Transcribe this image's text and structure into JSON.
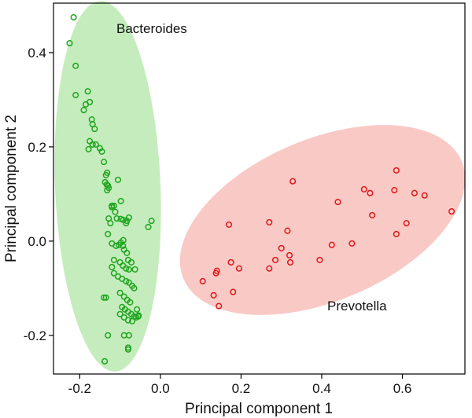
{
  "chart_data": {
    "type": "scatter",
    "title": "",
    "xlabel": "Principal component 1",
    "ylabel": "Principal component 2",
    "xlim": [
      -0.265,
      0.755
    ],
    "ylim": [
      -0.282,
      0.505
    ],
    "xticks": [
      -0.2,
      0.0,
      0.2,
      0.4,
      0.6
    ],
    "xtick_labels": [
      "-0.2",
      "0.0",
      "0.2",
      "0.4",
      "0.6"
    ],
    "yticks": [
      -0.2,
      0.0,
      0.2,
      0.4
    ],
    "ytick_labels": [
      "-0.2",
      "0.0",
      "0.2",
      "0.4"
    ],
    "grid": false,
    "series": [
      {
        "name": "Bacteroides",
        "label": "Bacteroides",
        "color": "#1fa51f",
        "ellipse_color": "#c5ecbc",
        "points": [
          [
            -0.215,
            0.475
          ],
          [
            -0.225,
            0.42
          ],
          [
            -0.21,
            0.372
          ],
          [
            -0.21,
            0.31
          ],
          [
            -0.18,
            0.318
          ],
          [
            -0.175,
            0.295
          ],
          [
            -0.185,
            0.29
          ],
          [
            -0.19,
            0.278
          ],
          [
            -0.17,
            0.258
          ],
          [
            -0.168,
            0.248
          ],
          [
            -0.163,
            0.238
          ],
          [
            -0.175,
            0.212
          ],
          [
            -0.168,
            0.205
          ],
          [
            -0.16,
            0.205
          ],
          [
            -0.178,
            0.195
          ],
          [
            -0.15,
            0.197
          ],
          [
            -0.145,
            0.19
          ],
          [
            -0.14,
            0.168
          ],
          [
            -0.132,
            0.145
          ],
          [
            -0.135,
            0.14
          ],
          [
            -0.137,
            0.125
          ],
          [
            -0.133,
            0.12
          ],
          [
            -0.13,
            0.118
          ],
          [
            -0.128,
            0.113
          ],
          [
            -0.132,
            0.108
          ],
          [
            -0.105,
            0.13
          ],
          [
            -0.12,
            0.075
          ],
          [
            -0.115,
            0.075
          ],
          [
            -0.12,
            0.072
          ],
          [
            -0.112,
            0.062
          ],
          [
            -0.098,
            0.085
          ],
          [
            -0.078,
            0.05
          ],
          [
            -0.108,
            0.048
          ],
          [
            -0.098,
            0.047
          ],
          [
            -0.092,
            0.045
          ],
          [
            -0.083,
            0.043
          ],
          [
            -0.085,
            0.038
          ],
          [
            -0.128,
            0.048
          ],
          [
            -0.124,
            0.038
          ],
          [
            -0.13,
            0.015
          ],
          [
            -0.12,
            -0.005
          ],
          [
            -0.11,
            -0.01
          ],
          [
            -0.103,
            -0.008
          ],
          [
            -0.098,
            -0.003
          ],
          [
            -0.092,
            0.002
          ],
          [
            -0.093,
            -0.01
          ],
          [
            -0.09,
            -0.018
          ],
          [
            -0.083,
            -0.025
          ],
          [
            -0.08,
            -0.04
          ],
          [
            -0.072,
            -0.045
          ],
          [
            -0.063,
            -0.06
          ],
          [
            -0.115,
            -0.04
          ],
          [
            -0.1,
            -0.045
          ],
          [
            -0.093,
            -0.052
          ],
          [
            -0.085,
            -0.058
          ],
          [
            -0.078,
            -0.06
          ],
          [
            -0.12,
            -0.055
          ],
          [
            -0.115,
            -0.068
          ],
          [
            -0.105,
            -0.075
          ],
          [
            -0.095,
            -0.08
          ],
          [
            -0.085,
            -0.085
          ],
          [
            -0.078,
            -0.088
          ],
          [
            -0.07,
            -0.095
          ],
          [
            -0.065,
            -0.1
          ],
          [
            -0.1,
            -0.11
          ],
          [
            -0.09,
            -0.118
          ],
          [
            -0.082,
            -0.125
          ],
          [
            -0.075,
            -0.13
          ],
          [
            -0.095,
            -0.14
          ],
          [
            -0.088,
            -0.145
          ],
          [
            -0.08,
            -0.15
          ],
          [
            -0.072,
            -0.155
          ],
          [
            -0.065,
            -0.16
          ],
          [
            -0.06,
            -0.162
          ],
          [
            -0.054,
            -0.158
          ],
          [
            -0.1,
            -0.155
          ],
          [
            -0.09,
            -0.162
          ],
          [
            -0.08,
            -0.168
          ],
          [
            -0.07,
            -0.17
          ],
          [
            -0.14,
            -0.12
          ],
          [
            -0.135,
            -0.12
          ],
          [
            -0.13,
            -0.2
          ],
          [
            -0.09,
            -0.2
          ],
          [
            -0.078,
            -0.2
          ],
          [
            -0.08,
            -0.23
          ],
          [
            -0.08,
            -0.226
          ],
          [
            -0.138,
            -0.255
          ],
          [
            -0.058,
            -0.145
          ],
          [
            -0.055,
            -0.16
          ],
          [
            -0.03,
            0.03
          ],
          [
            -0.022,
            0.043
          ]
        ]
      },
      {
        "name": "Prevotella",
        "label": "Prevotella",
        "color": "#e01818",
        "ellipse_color": "#f9c9c6",
        "points": [
          [
            0.328,
            0.127
          ],
          [
            0.585,
            0.15
          ],
          [
            0.505,
            0.11
          ],
          [
            0.52,
            0.102
          ],
          [
            0.58,
            0.108
          ],
          [
            0.63,
            0.102
          ],
          [
            0.655,
            0.097
          ],
          [
            0.44,
            0.083
          ],
          [
            0.722,
            0.063
          ],
          [
            0.525,
            0.055
          ],
          [
            0.17,
            0.035
          ],
          [
            0.27,
            0.04
          ],
          [
            0.61,
            0.038
          ],
          [
            0.315,
            0.022
          ],
          [
            0.585,
            0.015
          ],
          [
            0.475,
            -0.005
          ],
          [
            0.425,
            -0.008
          ],
          [
            0.3,
            -0.015
          ],
          [
            0.32,
            -0.03
          ],
          [
            0.285,
            -0.04
          ],
          [
            0.395,
            -0.04
          ],
          [
            0.322,
            -0.045
          ],
          [
            0.175,
            -0.045
          ],
          [
            0.195,
            -0.058
          ],
          [
            0.27,
            -0.058
          ],
          [
            0.14,
            -0.063
          ],
          [
            0.138,
            -0.068
          ],
          [
            0.105,
            -0.085
          ],
          [
            0.18,
            -0.108
          ],
          [
            0.132,
            -0.115
          ],
          [
            0.145,
            -0.138
          ]
        ]
      }
    ]
  }
}
